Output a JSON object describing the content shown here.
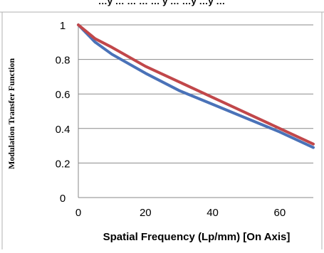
{
  "header_fragment": "…y … … … … y … …y …y …",
  "chart_data": {
    "type": "line",
    "title": "",
    "xlabel": "Spatial Frequency (Lp/mm) [On Axis]",
    "ylabel": "Modulation Transfer Function",
    "xlim": [
      0,
      70
    ],
    "ylim": [
      0,
      1
    ],
    "x_ticks": [
      "0",
      "20",
      "40",
      "60"
    ],
    "y_ticks": [
      "0",
      "0.2",
      "0.4",
      "0.6",
      "0.8",
      "1"
    ],
    "grid": "horizontal",
    "series": [
      {
        "color": "#4a72b8",
        "x": [
          0,
          5,
          10,
          20,
          30,
          40,
          50,
          60,
          70
        ],
        "y": [
          1.0,
          0.9,
          0.83,
          0.72,
          0.62,
          0.54,
          0.46,
          0.38,
          0.29
        ]
      },
      {
        "color": "#c1474a",
        "x": [
          0,
          5,
          10,
          20,
          30,
          40,
          50,
          60,
          70
        ],
        "y": [
          1.0,
          0.92,
          0.87,
          0.76,
          0.67,
          0.58,
          0.49,
          0.4,
          0.31
        ]
      }
    ]
  }
}
